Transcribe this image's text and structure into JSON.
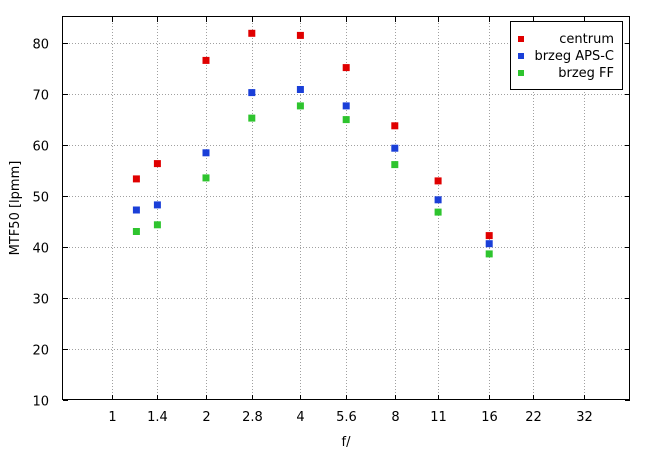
{
  "chart_data": {
    "type": "scatter",
    "xlabel": "f/",
    "ylabel": "MTF50 [lpmm]",
    "x_scale": "log",
    "x_ticks": [
      "1",
      "1.4",
      "2",
      "2.8",
      "4",
      "5.6",
      "8",
      "11",
      "16",
      "22",
      "32"
    ],
    "x_tick_values": [
      1,
      1.4,
      2,
      2.8,
      4,
      5.6,
      8,
      11,
      16,
      22,
      32
    ],
    "xlim": [
      0.7,
      45
    ],
    "ylim": [
      10,
      85
    ],
    "y_ticks": [
      10,
      20,
      30,
      40,
      50,
      60,
      70,
      80
    ],
    "grid": true,
    "legend_position": "top-right",
    "series": [
      {
        "name": "centrum",
        "color": "#e00000",
        "x": [
          1.2,
          1.4,
          2,
          2.8,
          4,
          5.6,
          8,
          11,
          16
        ],
        "y": [
          53.3,
          56.3,
          76.5,
          81.8,
          81.4,
          75.1,
          63.7,
          52.9,
          42.2
        ]
      },
      {
        "name": "brzeg APS-C",
        "color": "#1a3fd8",
        "x": [
          1.2,
          1.4,
          2,
          2.8,
          4,
          5.6,
          8,
          11,
          16
        ],
        "y": [
          47.2,
          48.2,
          58.4,
          70.2,
          70.8,
          67.6,
          59.3,
          49.2,
          40.6
        ]
      },
      {
        "name": "brzeg FF",
        "color": "#2ec42e",
        "x": [
          1.2,
          1.4,
          2,
          2.8,
          4,
          5.6,
          8,
          11,
          16
        ],
        "y": [
          43.0,
          44.3,
          53.5,
          65.2,
          67.6,
          64.9,
          56.1,
          46.8,
          38.6
        ]
      }
    ]
  }
}
